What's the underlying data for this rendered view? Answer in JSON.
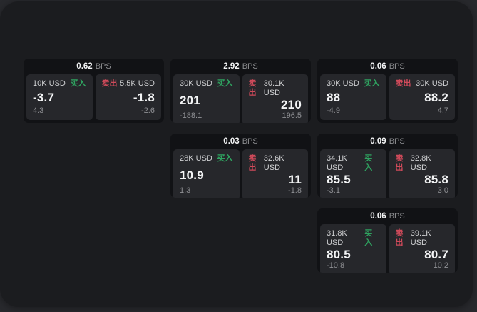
{
  "labels": {
    "bps": "BPS",
    "buy": "买入",
    "sell": "卖出"
  },
  "colors": {
    "buy_accent": "#2fa360",
    "sell_accent": "#cf4a5a",
    "panel_bg": "#1b1c1f",
    "card_bg": "#111215",
    "subpanel_bg": "#26272b"
  },
  "cards": [
    {
      "bps": "0.62",
      "buy": {
        "amount": "10K USD",
        "price": "-3.7",
        "delta": "4.3"
      },
      "sell": {
        "amount": "5.5K USD",
        "price": "-1.8",
        "delta": "-2.6"
      }
    },
    {
      "bps": "2.92",
      "buy": {
        "amount": "30K USD",
        "price": "201",
        "delta": "-188.1"
      },
      "sell": {
        "amount": "30.1K USD",
        "price": "210",
        "delta": "196.5"
      }
    },
    {
      "bps": "0.06",
      "buy": {
        "amount": "30K USD",
        "price": "88",
        "delta": "-4.9"
      },
      "sell": {
        "amount": "30K USD",
        "price": "88.2",
        "delta": "4.7"
      }
    },
    {
      "bps": "0.03",
      "buy": {
        "amount": "28K USD",
        "price": "10.9",
        "delta": "1.3"
      },
      "sell": {
        "amount": "32.6K USD",
        "price": "11",
        "delta": "-1.8"
      }
    },
    {
      "bps": "0.09",
      "buy": {
        "amount": "34.1K USD",
        "price": "85.5",
        "delta": "-3.1"
      },
      "sell": {
        "amount": "32.8K USD",
        "price": "85.8",
        "delta": "3.0"
      }
    },
    {
      "bps": "0.06",
      "buy": {
        "amount": "31.8K USD",
        "price": "80.5",
        "delta": "-10.8"
      },
      "sell": {
        "amount": "39.1K USD",
        "price": "80.7",
        "delta": "10.2"
      }
    }
  ]
}
